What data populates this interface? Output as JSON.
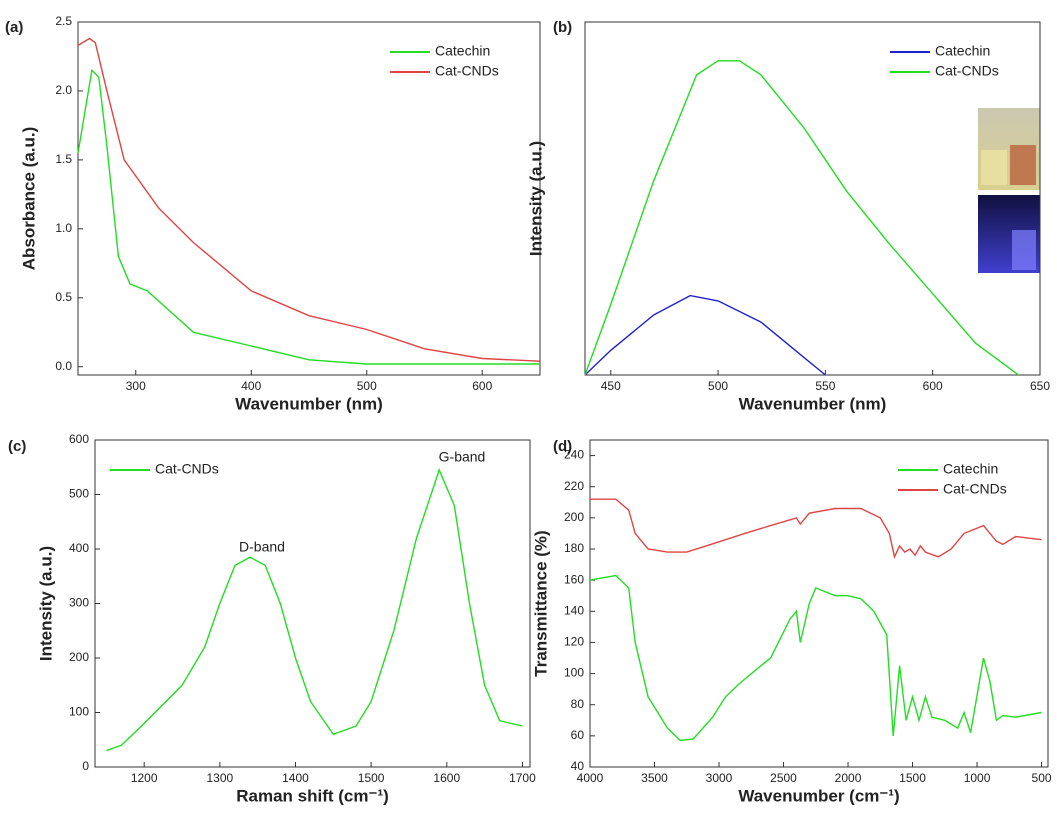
{
  "chart_data": [
    {
      "type": "line",
      "panel_label": "(a)",
      "x_label": "Wavenumber (nm)",
      "y_label": "Absorbance (a.u.)",
      "legend": "upper right",
      "xlim": [
        250,
        650
      ],
      "ylim": [
        -0.06,
        2.5
      ],
      "xticks": [
        300,
        400,
        500,
        600
      ],
      "yticks": [
        {
          "value": 0,
          "label": "0.0"
        },
        {
          "value": 0.5,
          "label": "0.5"
        },
        {
          "value": 1,
          "label": "1.0"
        },
        {
          "value": 1.5,
          "label": "1.5"
        },
        {
          "value": 2,
          "label": "2.0"
        },
        {
          "value": 2.5,
          "label": "2.5"
        }
      ],
      "series": [
        {
          "name": "Catechin",
          "color": "#22dd22",
          "x": [
            250,
            255,
            262,
            268,
            275,
            285,
            295,
            310,
            330,
            350,
            400,
            450,
            500,
            650
          ],
          "values": [
            1.55,
            1.8,
            2.15,
            2.1,
            1.6,
            0.8,
            0.6,
            0.55,
            0.4,
            0.25,
            0.15,
            0.05,
            0.02,
            0.02
          ]
        },
        {
          "name": "Cat-CNDs",
          "color": "#e04444",
          "x": [
            250,
            260,
            265,
            275,
            290,
            320,
            350,
            400,
            450,
            500,
            550,
            600,
            650
          ],
          "values": [
            2.33,
            2.38,
            2.35,
            2.0,
            1.5,
            1.15,
            0.9,
            0.55,
            0.37,
            0.27,
            0.13,
            0.06,
            0.04
          ]
        }
      ]
    },
    {
      "type": "line",
      "panel_label": "(b)",
      "x_label": "Wavenumber (nm)",
      "y_label": "Intensity (a.u.)",
      "legend": "upper right",
      "xlim": [
        438,
        650
      ],
      "ylim": [
        0,
        100
      ],
      "xticks": [
        450,
        500,
        550,
        600,
        650
      ],
      "series": [
        {
          "name": "Catechin",
          "color": "#2222cc",
          "x": [
            438,
            450,
            470,
            487,
            500,
            520,
            540,
            550
          ],
          "values": [
            0,
            7,
            17,
            22.5,
            21,
            15,
            5,
            0
          ]
        },
        {
          "name": "Cat-CNDs",
          "color": "#22dd22",
          "x": [
            438,
            450,
            470,
            490,
            500,
            510,
            520,
            540,
            560,
            580,
            600,
            620,
            640
          ],
          "values": [
            0,
            20,
            55,
            85,
            89,
            89,
            85,
            70,
            52,
            37,
            23,
            9,
            0
          ]
        }
      ]
    },
    {
      "type": "line",
      "panel_label": "(c)",
      "x_label": "Raman shift (cm⁻¹)",
      "y_label": "Intensity (a.u.)",
      "legend": "upper left",
      "annotations": [
        "D-band",
        "G-band"
      ],
      "xlim": [
        1135,
        1710
      ],
      "ylim": [
        0,
        600
      ],
      "xticks": [
        1200,
        1300,
        1400,
        1500,
        1600,
        1700
      ],
      "yticks": [
        0,
        100,
        200,
        300,
        400,
        500,
        600
      ],
      "series": [
        {
          "name": "Cat-CNDs",
          "color": "#22dd22",
          "x": [
            1150,
            1170,
            1200,
            1250,
            1280,
            1300,
            1320,
            1340,
            1360,
            1380,
            1400,
            1420,
            1450,
            1480,
            1500,
            1530,
            1560,
            1590,
            1610,
            1630,
            1650,
            1670,
            1700
          ],
          "values": [
            30,
            40,
            80,
            150,
            220,
            300,
            370,
            385,
            370,
            300,
            200,
            120,
            60,
            75,
            120,
            250,
            420,
            545,
            480,
            300,
            150,
            85,
            75
          ]
        }
      ]
    },
    {
      "type": "line",
      "panel_label": "(d)",
      "x_label": "Wavenumber (cm⁻¹)",
      "y_label": "Transmittance (%)",
      "legend": "upper right",
      "xlim": [
        4000,
        450
      ],
      "ylim": [
        40,
        250
      ],
      "xticks": [
        4000,
        3500,
        3000,
        2500,
        2000,
        1500,
        1000,
        500
      ],
      "yticks": [
        40,
        60,
        80,
        100,
        120,
        140,
        160,
        180,
        200,
        220,
        240
      ],
      "series": [
        {
          "name": "Catechin",
          "color": "#22dd22",
          "x": [
            4000,
            3800,
            3700,
            3650,
            3550,
            3400,
            3300,
            3200,
            3050,
            2950,
            2850,
            2750,
            2600,
            2450,
            2400,
            2370,
            2300,
            2250,
            2100,
            2000,
            1900,
            1800,
            1700,
            1650,
            1600,
            1550,
            1500,
            1450,
            1400,
            1350,
            1250,
            1150,
            1100,
            1050,
            950,
            900,
            850,
            800,
            700,
            500
          ],
          "values": [
            160,
            163,
            155,
            120,
            85,
            65,
            57,
            58,
            72,
            85,
            93,
            100,
            110,
            135,
            140,
            120,
            145,
            155,
            150,
            150,
            148,
            140,
            125,
            60,
            105,
            70,
            85,
            70,
            85,
            72,
            70,
            65,
            75,
            62,
            110,
            95,
            70,
            73,
            72,
            75
          ]
        },
        {
          "name": "Cat-CNDs",
          "color": "#e04444",
          "x": [
            4000,
            3800,
            3700,
            3650,
            3550,
            3400,
            3250,
            3100,
            2950,
            2800,
            2600,
            2400,
            2370,
            2300,
            2100,
            1900,
            1750,
            1680,
            1640,
            1600,
            1560,
            1520,
            1480,
            1440,
            1400,
            1300,
            1200,
            1100,
            950,
            850,
            800,
            700,
            500
          ],
          "values": [
            212,
            212,
            205,
            190,
            180,
            178,
            178,
            182,
            186,
            190,
            195,
            200,
            196,
            203,
            206,
            206,
            200,
            190,
            175,
            182,
            178,
            180,
            176,
            182,
            178,
            175,
            180,
            190,
            195,
            185,
            183,
            188,
            186
          ]
        }
      ]
    }
  ]
}
